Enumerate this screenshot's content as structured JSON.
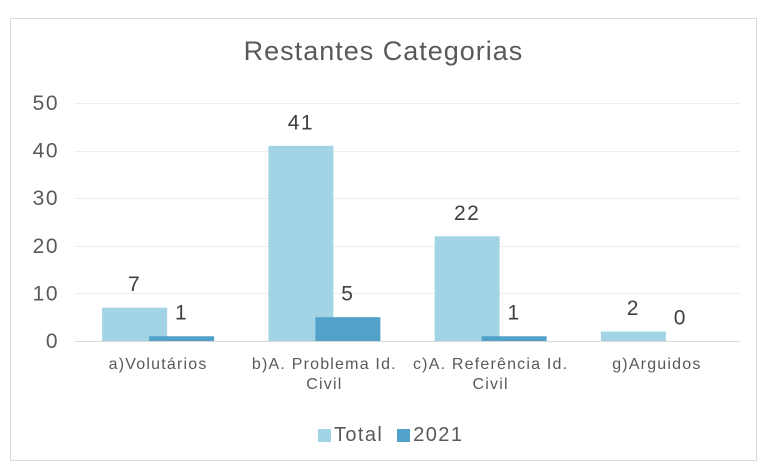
{
  "chart_data": {
    "type": "bar",
    "title": "Restantes Categorias",
    "categories": [
      "a)Volutários",
      "b)A. Problema Id. Civil",
      "c)A. Referência Id. Civil",
      "g)Arguidos"
    ],
    "series": [
      {
        "name": "Total",
        "values": [
          7,
          41,
          22,
          2
        ],
        "color": "#a3d4e6"
      },
      {
        "name": "2021",
        "values": [
          1,
          5,
          1,
          0
        ],
        "color": "#52a1c9"
      }
    ],
    "ylim": [
      0,
      50
    ],
    "yticks": [
      0,
      10,
      20,
      30,
      40,
      50
    ],
    "grid": true,
    "legend": "bottom"
  },
  "colors": {
    "grid": "#eeeeee",
    "axis": "#d9d9d9",
    "frame": "#d9d9d9"
  }
}
